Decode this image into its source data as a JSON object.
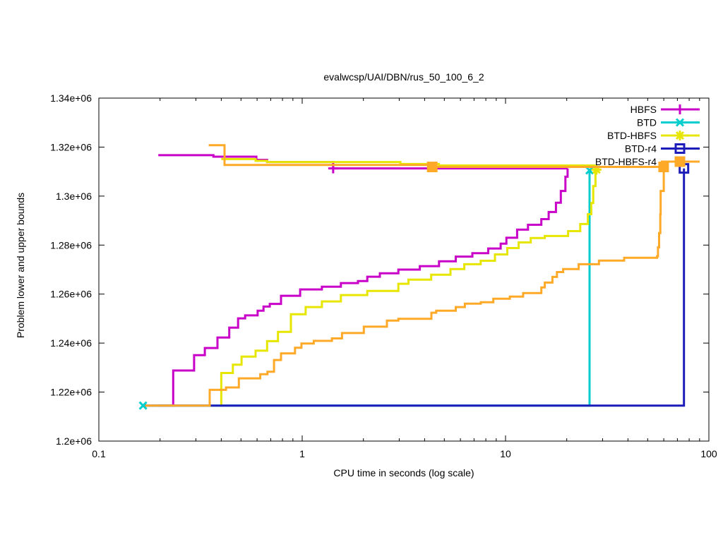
{
  "chart_data": {
    "type": "line",
    "title": "evalwcsp/UAI/DBN/rus_50_100_6_2",
    "xlabel": "CPU time in seconds (log scale)",
    "ylabel": "Problem lower and upper bounds",
    "x_scale": "log",
    "grid": false,
    "legend_position": "top-right-inside",
    "xlim": [
      0.1,
      100
    ],
    "ylim": [
      1200000,
      1340000
    ],
    "x_ticks": [
      {
        "v": 0.1,
        "label": "0.1"
      },
      {
        "v": 1,
        "label": "1"
      },
      {
        "v": 10,
        "label": "10"
      },
      {
        "v": 100,
        "label": "100"
      }
    ],
    "x_minor_ticks": [
      0.2,
      0.3,
      0.4,
      0.5,
      0.6,
      0.7,
      0.8,
      0.9,
      2,
      3,
      4,
      5,
      6,
      7,
      8,
      9,
      20,
      30,
      40,
      50,
      60,
      70,
      80,
      90
    ],
    "y_ticks": [
      {
        "v": 1200000,
        "label": "1.2e+06"
      },
      {
        "v": 1220000,
        "label": "1.22e+06"
      },
      {
        "v": 1240000,
        "label": "1.24e+06"
      },
      {
        "v": 1260000,
        "label": "1.26e+06"
      },
      {
        "v": 1280000,
        "label": "1.28e+06"
      },
      {
        "v": 1300000,
        "label": "1.3e+06"
      },
      {
        "v": 1320000,
        "label": "1.32e+06"
      },
      {
        "v": 1340000,
        "label": "1.34e+06"
      }
    ],
    "series": [
      {
        "name": "HBFS",
        "color": "#c800c8",
        "marker": "plus",
        "lower": [
          [
            0.196,
            1214500
          ],
          [
            0.232,
            1228800
          ],
          [
            0.294,
            1235100
          ],
          [
            0.332,
            1238000
          ],
          [
            0.383,
            1242300
          ],
          [
            0.438,
            1246300
          ],
          [
            0.484,
            1250100
          ],
          [
            0.524,
            1251300
          ],
          [
            0.604,
            1253200
          ],
          [
            0.645,
            1254900
          ],
          [
            0.693,
            1256000
          ],
          [
            0.787,
            1259300
          ],
          [
            0.977,
            1261900
          ],
          [
            1.25,
            1263000
          ],
          [
            1.55,
            1264500
          ],
          [
            1.88,
            1265300
          ],
          [
            2.09,
            1267100
          ],
          [
            2.41,
            1268500
          ],
          [
            2.97,
            1270000
          ],
          [
            3.79,
            1271400
          ],
          [
            4.71,
            1273400
          ],
          [
            5.69,
            1275300
          ],
          [
            6.87,
            1276700
          ],
          [
            8.22,
            1278600
          ],
          [
            9.46,
            1280600
          ],
          [
            10.1,
            1283000
          ],
          [
            11.4,
            1286300
          ],
          [
            12.9,
            1288300
          ],
          [
            15.0,
            1290600
          ],
          [
            16.3,
            1293500
          ],
          [
            17.7,
            1297300
          ],
          [
            18.7,
            1302100
          ],
          [
            19.7,
            1307900
          ],
          [
            20.2,
            1311300
          ]
        ],
        "upper": [
          [
            0.196,
            1316700
          ],
          [
            0.366,
            1316100
          ],
          [
            0.595,
            1314800
          ],
          [
            0.672,
            1313900
          ],
          [
            1.42,
            1311300
          ],
          [
            20.2,
            1311300
          ]
        ],
        "marker_points": [
          [
            1.42,
            1311300
          ]
        ]
      },
      {
        "name": "BTD",
        "color": "#00cdcd",
        "marker": "x",
        "lower": [
          [
            0.165,
            1214500
          ],
          [
            25.9,
            1214500
          ],
          [
            25.9,
            1310500
          ]
        ],
        "upper": [],
        "marker_points": [
          [
            0.165,
            1214500
          ],
          [
            25.9,
            1310500
          ]
        ]
      },
      {
        "name": "BTD-HBFS",
        "color": "#e6e600",
        "marker": "star",
        "lower": [
          [
            0.4,
            1214500
          ],
          [
            0.4,
            1227800
          ],
          [
            0.456,
            1231200
          ],
          [
            0.503,
            1234500
          ],
          [
            0.59,
            1236900
          ],
          [
            0.672,
            1240800
          ],
          [
            0.76,
            1244600
          ],
          [
            0.88,
            1251800
          ],
          [
            1.04,
            1254700
          ],
          [
            1.25,
            1257000
          ],
          [
            1.55,
            1259600
          ],
          [
            2.09,
            1261300
          ],
          [
            2.97,
            1264200
          ],
          [
            3.33,
            1265900
          ],
          [
            4.31,
            1267900
          ],
          [
            5.36,
            1270200
          ],
          [
            6.27,
            1272200
          ],
          [
            7.55,
            1273600
          ],
          [
            8.87,
            1276200
          ],
          [
            10.2,
            1278800
          ],
          [
            11.6,
            1281100
          ],
          [
            13.3,
            1282900
          ],
          [
            15.6,
            1283700
          ],
          [
            20.3,
            1285700
          ],
          [
            23.3,
            1288600
          ],
          [
            25.4,
            1292600
          ],
          [
            26.4,
            1297200
          ],
          [
            27.0,
            1304100
          ],
          [
            27.7,
            1312500
          ]
        ],
        "upper": [
          [
            0.4,
            1315100
          ],
          [
            0.59,
            1314400
          ],
          [
            0.672,
            1313900
          ],
          [
            3.04,
            1313100
          ],
          [
            4.7,
            1312500
          ],
          [
            27.7,
            1312500
          ]
        ],
        "marker_points": [
          [
            28.0,
            1310800
          ]
        ]
      },
      {
        "name": "BTD-r4",
        "color": "#1c1cb8",
        "marker": "square-open",
        "lower": [
          [
            0.169,
            1214500
          ],
          [
            75.4,
            1214500
          ],
          [
            75.4,
            1311300
          ]
        ],
        "upper": [],
        "marker_points": [
          [
            75.4,
            1311300
          ]
        ]
      },
      {
        "name": "BTD-HBFS-r4",
        "color": "#ffa928",
        "marker": "square",
        "lower": [
          [
            0.169,
            1214500
          ],
          [
            0.351,
            1220900
          ],
          [
            0.422,
            1221900
          ],
          [
            0.488,
            1225600
          ],
          [
            0.622,
            1227300
          ],
          [
            0.675,
            1228300
          ],
          [
            0.727,
            1233100
          ],
          [
            0.787,
            1235800
          ],
          [
            0.922,
            1238100
          ],
          [
            0.991,
            1239800
          ],
          [
            1.14,
            1240900
          ],
          [
            1.4,
            1241900
          ],
          [
            1.57,
            1244100
          ],
          [
            2.01,
            1246700
          ],
          [
            2.61,
            1249200
          ],
          [
            2.97,
            1249900
          ],
          [
            4.32,
            1252400
          ],
          [
            4.56,
            1253200
          ],
          [
            5.69,
            1254700
          ],
          [
            6.31,
            1256100
          ],
          [
            7.56,
            1256700
          ],
          [
            8.71,
            1258100
          ],
          [
            10.5,
            1259000
          ],
          [
            12.2,
            1260400
          ],
          [
            15.0,
            1262700
          ],
          [
            15.6,
            1264700
          ],
          [
            17.0,
            1267000
          ],
          [
            17.9,
            1269000
          ],
          [
            19.2,
            1270200
          ],
          [
            22.9,
            1272200
          ],
          [
            28.8,
            1273700
          ],
          [
            38.3,
            1274800
          ],
          [
            55.6,
            1275400
          ],
          [
            56.2,
            1279100
          ],
          [
            56.9,
            1284900
          ],
          [
            57.7,
            1292600
          ],
          [
            57.9,
            1302100
          ],
          [
            60.0,
            1311900
          ]
        ],
        "upper": [
          [
            0.347,
            1320800
          ],
          [
            0.415,
            1312700
          ],
          [
            4.36,
            1311900
          ],
          [
            60.0,
            1311900
          ]
        ],
        "marker_points": [
          [
            4.36,
            1311900
          ],
          [
            59.9,
            1311900
          ]
        ]
      }
    ]
  }
}
